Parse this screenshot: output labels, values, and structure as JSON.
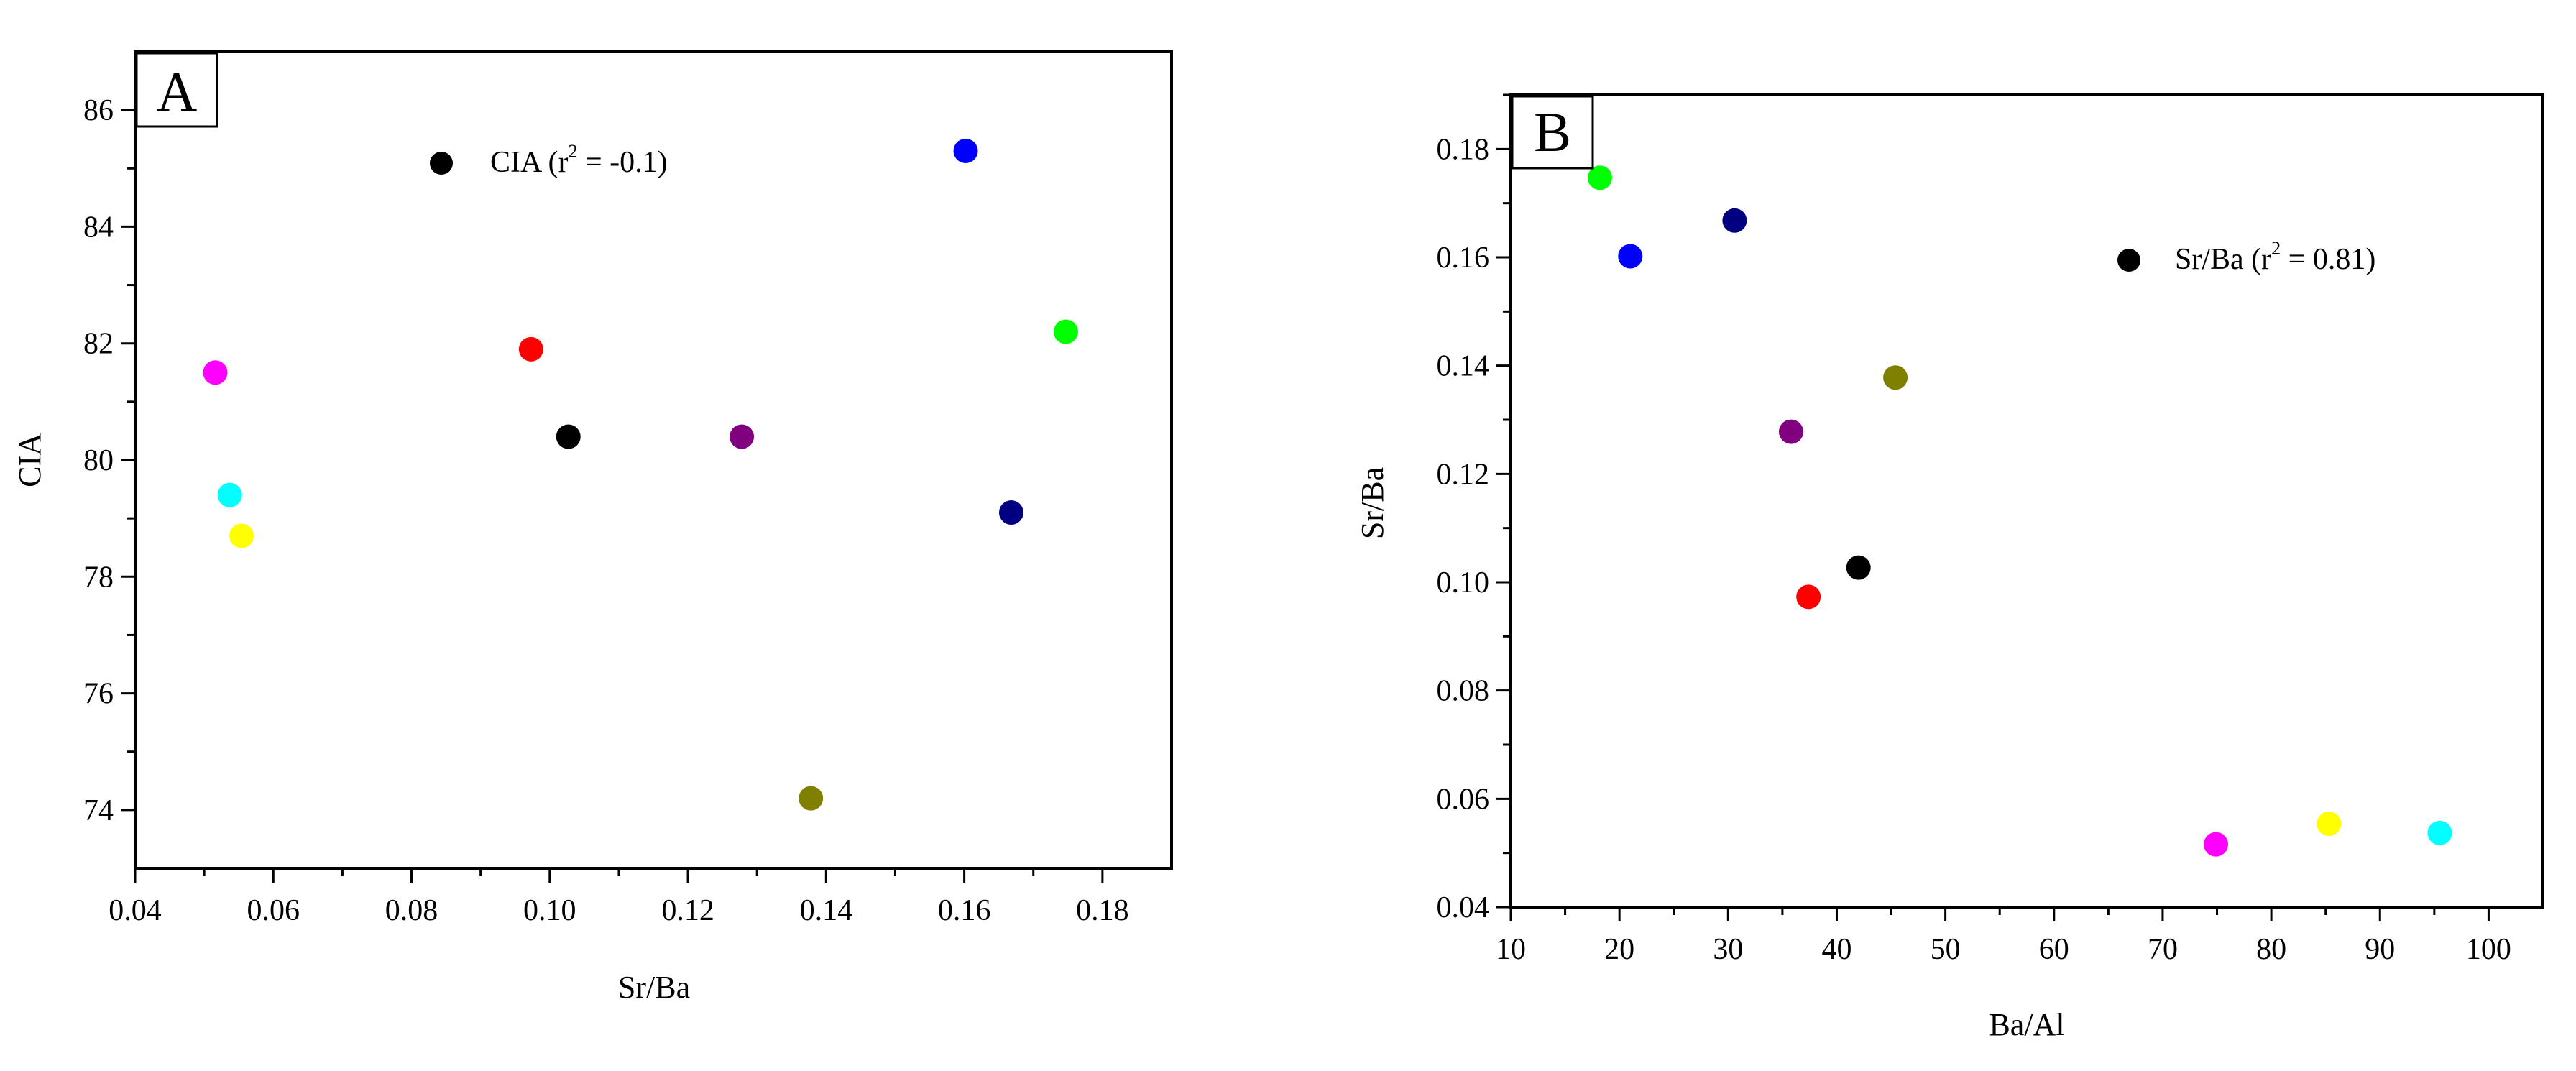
{
  "chart_data": [
    {
      "type": "scatter",
      "panel_label": "A",
      "xlabel": "Sr/Ba",
      "ylabel": "CIA",
      "xlim": [
        0.04,
        0.19
      ],
      "ylim": [
        73,
        87
      ],
      "x_ticks": [
        "0.04",
        "0.06",
        "0.08",
        "0.10",
        "0.12",
        "0.14",
        "0.16",
        "0.18"
      ],
      "x_tick_values": [
        0.04,
        0.06,
        0.08,
        0.1,
        0.12,
        0.14,
        0.16,
        0.18
      ],
      "y_ticks": [
        "74",
        "76",
        "78",
        "80",
        "82",
        "84",
        "86"
      ],
      "y_tick_values": [
        74,
        76,
        78,
        80,
        82,
        84,
        86
      ],
      "legend": {
        "label": "CIA (r",
        "sup": "2",
        "rest": " = -0.1)",
        "color": "#000000",
        "placement": "top-center"
      },
      "points": [
        {
          "x": 0.0516,
          "y": 81.5,
          "color": "#ff00ff"
        },
        {
          "x": 0.0537,
          "y": 79.4,
          "color": "#00ffff"
        },
        {
          "x": 0.0554,
          "y": 78.7,
          "color": "#ffff00"
        },
        {
          "x": 0.0973,
          "y": 81.9,
          "color": "#ff0000"
        },
        {
          "x": 0.1027,
          "y": 80.4,
          "color": "#000000"
        },
        {
          "x": 0.1278,
          "y": 80.4,
          "color": "#800080"
        },
        {
          "x": 0.1378,
          "y": 74.2,
          "color": "#808000"
        },
        {
          "x": 0.1602,
          "y": 85.3,
          "color": "#0000ff"
        },
        {
          "x": 0.1668,
          "y": 79.1,
          "color": "#000080"
        },
        {
          "x": 0.1747,
          "y": 82.2,
          "color": "#00ff00"
        }
      ]
    },
    {
      "type": "scatter",
      "panel_label": "B",
      "xlabel": "Ba/Al",
      "ylabel": "Sr/Ba",
      "xlim": [
        10,
        105
      ],
      "ylim": [
        0.04,
        0.19
      ],
      "x_ticks": [
        "10",
        "20",
        "30",
        "40",
        "50",
        "60",
        "70",
        "80",
        "90",
        "100"
      ],
      "x_tick_values": [
        10,
        20,
        30,
        40,
        50,
        60,
        70,
        80,
        90,
        100
      ],
      "y_ticks": [
        "0.04",
        "0.06",
        "0.08",
        "0.10",
        "0.12",
        "0.14",
        "0.16",
        "0.18"
      ],
      "y_tick_values": [
        0.04,
        0.06,
        0.08,
        0.1,
        0.12,
        0.14,
        0.16,
        0.18
      ],
      "legend": {
        "label": "Sr/Ba (r",
        "sup": "2",
        "rest": " = 0.81)",
        "color": "#000000",
        "placement": "top-right"
      },
      "points": [
        {
          "x": 18.2,
          "y": 0.1747,
          "color": "#00ff00"
        },
        {
          "x": 21.0,
          "y": 0.1602,
          "color": "#0000ff"
        },
        {
          "x": 30.6,
          "y": 0.1668,
          "color": "#000080"
        },
        {
          "x": 35.8,
          "y": 0.1278,
          "color": "#800080"
        },
        {
          "x": 37.4,
          "y": 0.0973,
          "color": "#ff0000"
        },
        {
          "x": 42.0,
          "y": 0.1027,
          "color": "#000000"
        },
        {
          "x": 45.4,
          "y": 0.1378,
          "color": "#808000"
        },
        {
          "x": 74.9,
          "y": 0.0516,
          "color": "#ff00ff"
        },
        {
          "x": 85.3,
          "y": 0.0554,
          "color": "#ffff00"
        },
        {
          "x": 95.5,
          "y": 0.0537,
          "color": "#00ffff"
        }
      ]
    }
  ]
}
